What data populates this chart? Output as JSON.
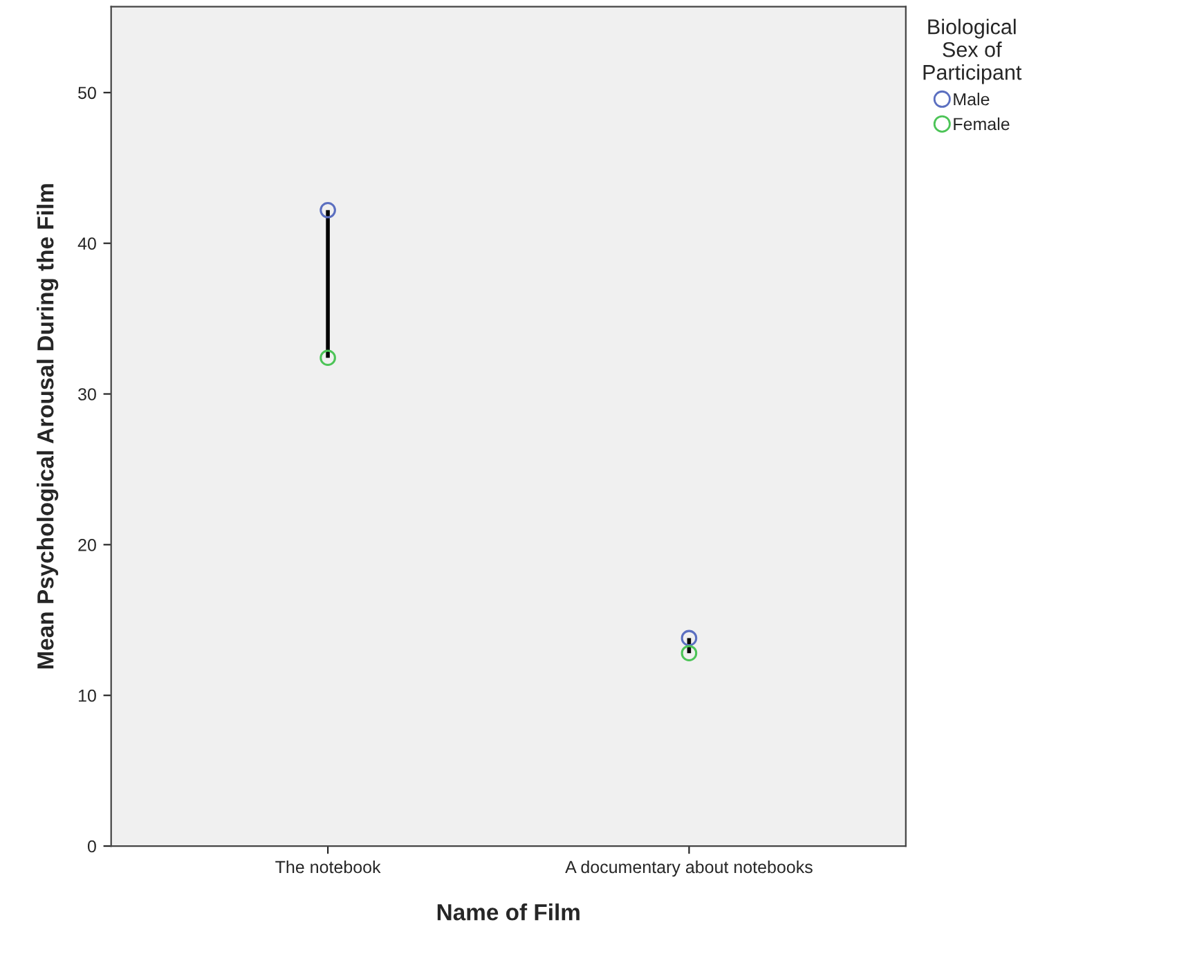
{
  "chart_data": {
    "type": "scatter",
    "xlabel": "Name of Film",
    "ylabel": "Mean Psychological Arousal During the Film",
    "categories": [
      "The notebook",
      "A documentary about notebooks"
    ],
    "series": [
      {
        "type": "line",
        "marker": "none",
        "x": [
          "The notebook",
          "The notebook"
        ],
        "values": [
          42.2,
          32.4
        ],
        "color": "#000000"
      },
      {
        "type": "line",
        "marker": "none",
        "x": [
          "A documentary about notebooks",
          "A documentary about notebooks"
        ],
        "values": [
          13.8,
          12.8
        ],
        "color": "#000000"
      },
      {
        "name": "Male",
        "color": "#5b6fc0",
        "values": [
          42.2,
          13.8
        ]
      },
      {
        "name": "Female",
        "color": "#4cc457",
        "values": [
          32.4,
          12.8
        ]
      }
    ],
    "ylim": [
      0,
      55.7
    ],
    "yticks": [
      0,
      10,
      20,
      30,
      40,
      50
    ],
    "grid": false,
    "marker": "circle",
    "legend": "top right",
    "legend_title": "Biological\nSex of\nParticipant"
  }
}
